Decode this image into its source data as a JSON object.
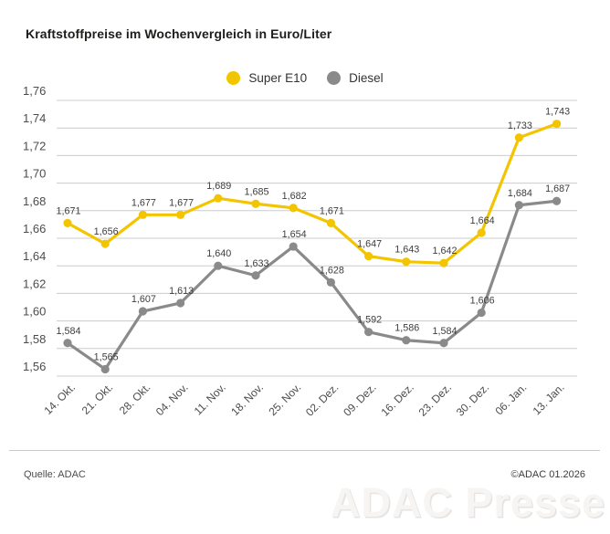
{
  "title": "Kraftstoffpreise im Wochenvergleich in Euro/Liter",
  "chart_data": {
    "type": "line",
    "categories": [
      "14. Okt.",
      "21. Okt.",
      "28. Okt.",
      "04. Nov.",
      "11. Nov.",
      "18. Nov.",
      "25. Nov.",
      "02. Dez.",
      "09. Dez.",
      "16. Dez.",
      "23. Dez.",
      "30. Dez.",
      "06. Jan.",
      "13. Jan."
    ],
    "series": [
      {
        "name": "Super E10",
        "color": "#F2C500",
        "values": [
          1.671,
          1.656,
          1.677,
          1.677,
          1.689,
          1.685,
          1.682,
          1.671,
          1.647,
          1.643,
          1.642,
          1.664,
          1.733,
          1.743
        ]
      },
      {
        "name": "Diesel",
        "color": "#8A8A8A",
        "values": [
          1.584,
          1.565,
          1.607,
          1.613,
          1.64,
          1.633,
          1.654,
          1.628,
          1.592,
          1.586,
          1.584,
          1.606,
          1.684,
          1.687
        ]
      }
    ],
    "title": "Kraftstoffpreise im Wochenvergleich in Euro/Liter",
    "xlabel": "",
    "ylabel": "Euro/Liter",
    "ylim": [
      1.56,
      1.76
    ],
    "ytick_step": 0.02,
    "ytick_labels": [
      "1,76",
      "1,74",
      "1,72",
      "1,70",
      "1,68",
      "1,66",
      "1,64",
      "1,62",
      "1,60",
      "1,58",
      "1,56"
    ],
    "grid": true,
    "legend_position": "top-center",
    "decimal_separator": ",",
    "value_labels_shown": true,
    "gridline_color": "#cccccc",
    "tick_label_color": "#4c4c4c",
    "value_label_color": "#3d3d3d"
  },
  "footer": {
    "source": "Quelle: ADAC",
    "copyright": "©ADAC 01.2026"
  },
  "watermark": "ADAC Presse"
}
